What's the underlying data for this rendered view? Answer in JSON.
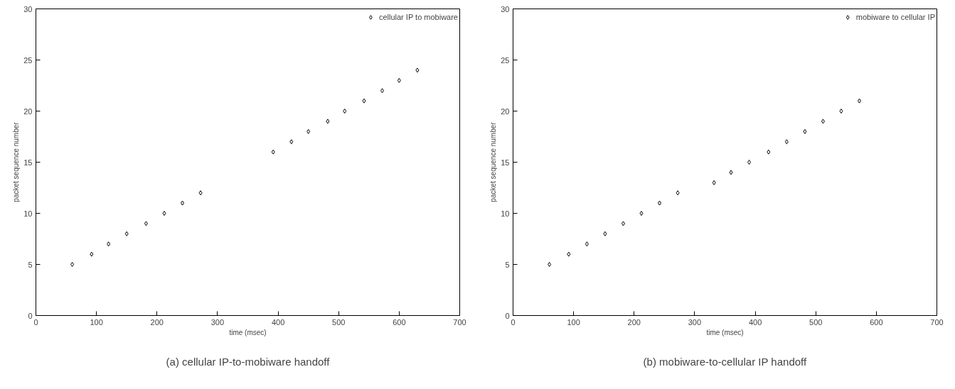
{
  "chart_data": [
    {
      "type": "scatter",
      "xlabel": "time (msec)",
      "ylabel": "packet sequence number",
      "xlim": [
        0,
        700
      ],
      "ylim": [
        0,
        30
      ],
      "xticks": [
        0,
        100,
        200,
        300,
        400,
        500,
        600,
        700
      ],
      "yticks": [
        0,
        5,
        10,
        15,
        20,
        25,
        30
      ],
      "marker": "diamond",
      "legend": "top right",
      "grid": false,
      "series": [
        {
          "name": "cellular IP to mobiware",
          "color": "#000000",
          "x": [
            60,
            92,
            120,
            150,
            182,
            212,
            242,
            272,
            392,
            422,
            450,
            482,
            510,
            542,
            572,
            600,
            630
          ],
          "values": [
            5,
            6,
            7,
            8,
            9,
            10,
            11,
            12,
            16,
            17,
            18,
            19,
            20,
            21,
            22,
            23,
            24
          ]
        }
      ],
      "annotations": [
        "(a) cellular IP-to-mobiware handoff"
      ]
    },
    {
      "type": "scatter",
      "xlabel": "time (msec)",
      "ylabel": "packet sequence number",
      "xlim": [
        0,
        700
      ],
      "ylim": [
        0,
        30
      ],
      "xticks": [
        0,
        100,
        200,
        300,
        400,
        500,
        600,
        700
      ],
      "yticks": [
        0,
        5,
        10,
        15,
        20,
        25,
        30
      ],
      "marker": "diamond",
      "legend": "top right",
      "grid": false,
      "series": [
        {
          "name": "mobiware to cellular IP",
          "color": "#000000",
          "x": [
            60,
            92,
            122,
            152,
            182,
            212,
            242,
            272,
            332,
            360,
            390,
            422,
            452,
            482,
            512,
            542,
            572
          ],
          "values": [
            5,
            6,
            7,
            8,
            9,
            10,
            11,
            12,
            13,
            14,
            15,
            16,
            17,
            18,
            19,
            20,
            21
          ]
        }
      ],
      "annotations": [
        "(b) mobiware-to-cellular IP handoff"
      ]
    }
  ]
}
